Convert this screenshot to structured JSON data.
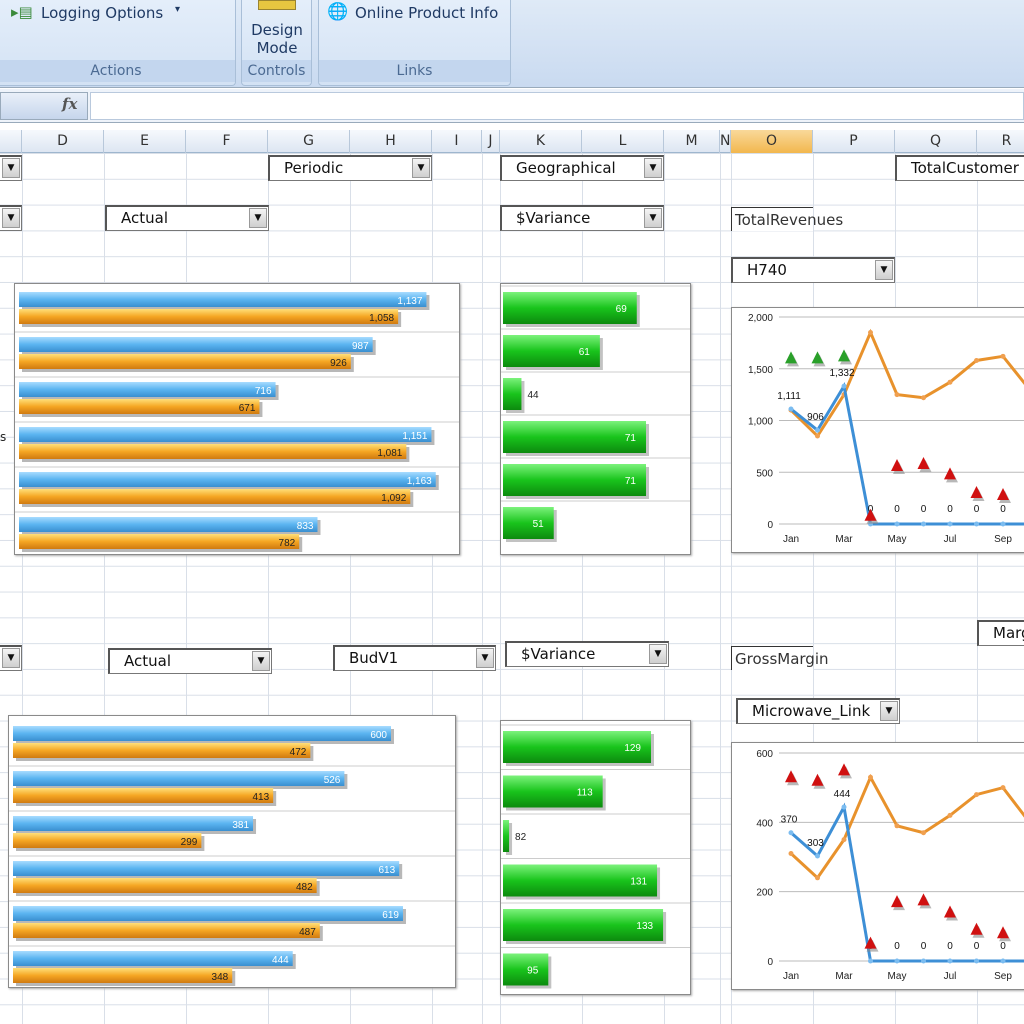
{
  "ribbon": {
    "logging_options": "Logging Options",
    "design_mode": "Design Mode",
    "online_product_info": "Online Product Info",
    "groups": [
      "Actions",
      "Controls",
      "Links"
    ]
  },
  "formula_bar": {
    "fx": "fx",
    "value": ""
  },
  "columns": [
    "D",
    "E",
    "F",
    "G",
    "H",
    "I",
    "J",
    "K",
    "L",
    "M",
    "N",
    "O",
    "P",
    "Q",
    "R"
  ],
  "selected_column": "O",
  "top_controls": {
    "periodic": "Periodic",
    "geographical": "Geographical",
    "actual": "Actual",
    "variance": "$Variance",
    "measure_label": "TotalRevenues",
    "product": "H740",
    "total_customer": "TotalCustomer",
    "row_label_fragment": "s"
  },
  "bottom_controls": {
    "actual": "Actual",
    "budget": "BudV1",
    "variance": "$Variance",
    "measure_label": "GrossMargin",
    "product": "Microwave_Link",
    "margin_fragment": "Marg"
  },
  "colors": {
    "blue_bar": "#5ab4f0",
    "orange_bar": "#f5a623",
    "green_bar": "#19c41c",
    "orange_line": "#e8922c",
    "blue_line": "#3d8fd6",
    "up_triangle": "#2aa02a",
    "down_triangle": "#d01010"
  },
  "chart_data": [
    {
      "id": "top-bars",
      "type": "bar",
      "orientation": "horizontal",
      "xlim": [
        0,
        1200
      ],
      "series": [
        {
          "values": [
            1137,
            987,
            716,
            1151,
            1163,
            833
          ],
          "labels": [
            "1,137",
            "987",
            "716",
            "1,151",
            "1,163",
            "833"
          ]
        },
        {
          "values": [
            1058,
            926,
            671,
            1081,
            1092,
            782
          ],
          "labels": [
            "1,058",
            "926",
            "671",
            "1,081",
            "1,092",
            "782"
          ]
        }
      ]
    },
    {
      "id": "top-variance",
      "type": "bar",
      "orientation": "horizontal",
      "xlim": [
        40,
        82
      ],
      "values": [
        69,
        61,
        44,
        71,
        71,
        51
      ],
      "labels": [
        "69",
        "61",
        "44",
        "71",
        "71",
        "51"
      ]
    },
    {
      "id": "top-trend",
      "type": "line",
      "categories": [
        "Jan",
        "Feb",
        "Mar",
        "Apr",
        "May",
        "Jun",
        "Jul",
        "Aug",
        "Sep",
        "Oct"
      ],
      "xtick_labels": [
        "Jan",
        "Mar",
        "May",
        "Jul",
        "Sep"
      ],
      "ylim": [
        0,
        2000
      ],
      "yticks": [
        "0",
        "500",
        "1,000",
        "1,500",
        "2,000"
      ],
      "ytick_values": [
        0,
        500,
        1000,
        1500,
        2000
      ],
      "grid": true,
      "series": [
        {
          "values": [
            1100,
            850,
            1250,
            1850,
            1250,
            1220,
            1370,
            1580,
            1620,
            1300
          ]
        },
        {
          "values": [
            1111,
            906,
            1332,
            0,
            0,
            0,
            0,
            0,
            0,
            0
          ],
          "labels": [
            "1,111",
            "906",
            "1,332",
            "0",
            "0",
            "0",
            "0",
            "0",
            "0",
            "0"
          ]
        }
      ],
      "markers": [
        {
          "x": "Jan",
          "y": 1600,
          "dir": "up"
        },
        {
          "x": "Feb",
          "y": 1600,
          "dir": "up"
        },
        {
          "x": "Mar",
          "y": 1620,
          "dir": "up"
        },
        {
          "x": "Apr",
          "y": 80,
          "dir": "down"
        },
        {
          "x": "May",
          "y": 560,
          "dir": "down"
        },
        {
          "x": "Jun",
          "y": 580,
          "dir": "down"
        },
        {
          "x": "Jul",
          "y": 480,
          "dir": "down"
        },
        {
          "x": "Aug",
          "y": 300,
          "dir": "down"
        },
        {
          "x": "Sep",
          "y": 280,
          "dir": "down"
        }
      ]
    },
    {
      "id": "bottom-bars",
      "type": "bar",
      "orientation": "horizontal",
      "xlim": [
        0,
        700
      ],
      "series": [
        {
          "values": [
            600,
            526,
            381,
            613,
            619,
            444
          ],
          "labels": [
            "600",
            "526",
            "381",
            "613",
            "619",
            "444"
          ]
        },
        {
          "values": [
            472,
            413,
            299,
            482,
            487,
            348
          ],
          "labels": [
            "472",
            "413",
            "299",
            "482",
            "487",
            "348"
          ]
        }
      ]
    },
    {
      "id": "bottom-variance",
      "type": "bar",
      "orientation": "horizontal",
      "xlim": [
        80,
        141
      ],
      "values": [
        129,
        113,
        82,
        131,
        133,
        95
      ],
      "labels": [
        "129",
        "113",
        "82",
        "131",
        "133",
        "95"
      ]
    },
    {
      "id": "bottom-trend",
      "type": "line",
      "categories": [
        "Jan",
        "Feb",
        "Mar",
        "Apr",
        "May",
        "Jun",
        "Jul",
        "Aug",
        "Sep",
        "Oct"
      ],
      "xtick_labels": [
        "Jan",
        "Mar",
        "May",
        "Jul",
        "Sep"
      ],
      "ylim": [
        0,
        600
      ],
      "yticks": [
        "0",
        "200",
        "400",
        "600"
      ],
      "ytick_values": [
        0,
        200,
        400,
        600
      ],
      "grid": true,
      "series": [
        {
          "values": [
            310,
            240,
            350,
            530,
            390,
            370,
            420,
            480,
            500,
            400
          ]
        },
        {
          "values": [
            370,
            303,
            444,
            0,
            0,
            0,
            0,
            0,
            0,
            0
          ],
          "labels": [
            "370",
            "303",
            "444",
            "0",
            "0",
            "0",
            "0",
            "0",
            "0",
            "0"
          ]
        }
      ],
      "markers": [
        {
          "x": "Jan",
          "y": 530,
          "dir": "down"
        },
        {
          "x": "Feb",
          "y": 520,
          "dir": "down"
        },
        {
          "x": "Mar",
          "y": 550,
          "dir": "down"
        },
        {
          "x": "Apr",
          "y": 50,
          "dir": "down"
        },
        {
          "x": "May",
          "y": 170,
          "dir": "down"
        },
        {
          "x": "Jun",
          "y": 175,
          "dir": "down"
        },
        {
          "x": "Jul",
          "y": 140,
          "dir": "down"
        },
        {
          "x": "Aug",
          "y": 90,
          "dir": "down"
        },
        {
          "x": "Sep",
          "y": 80,
          "dir": "down"
        }
      ]
    }
  ]
}
